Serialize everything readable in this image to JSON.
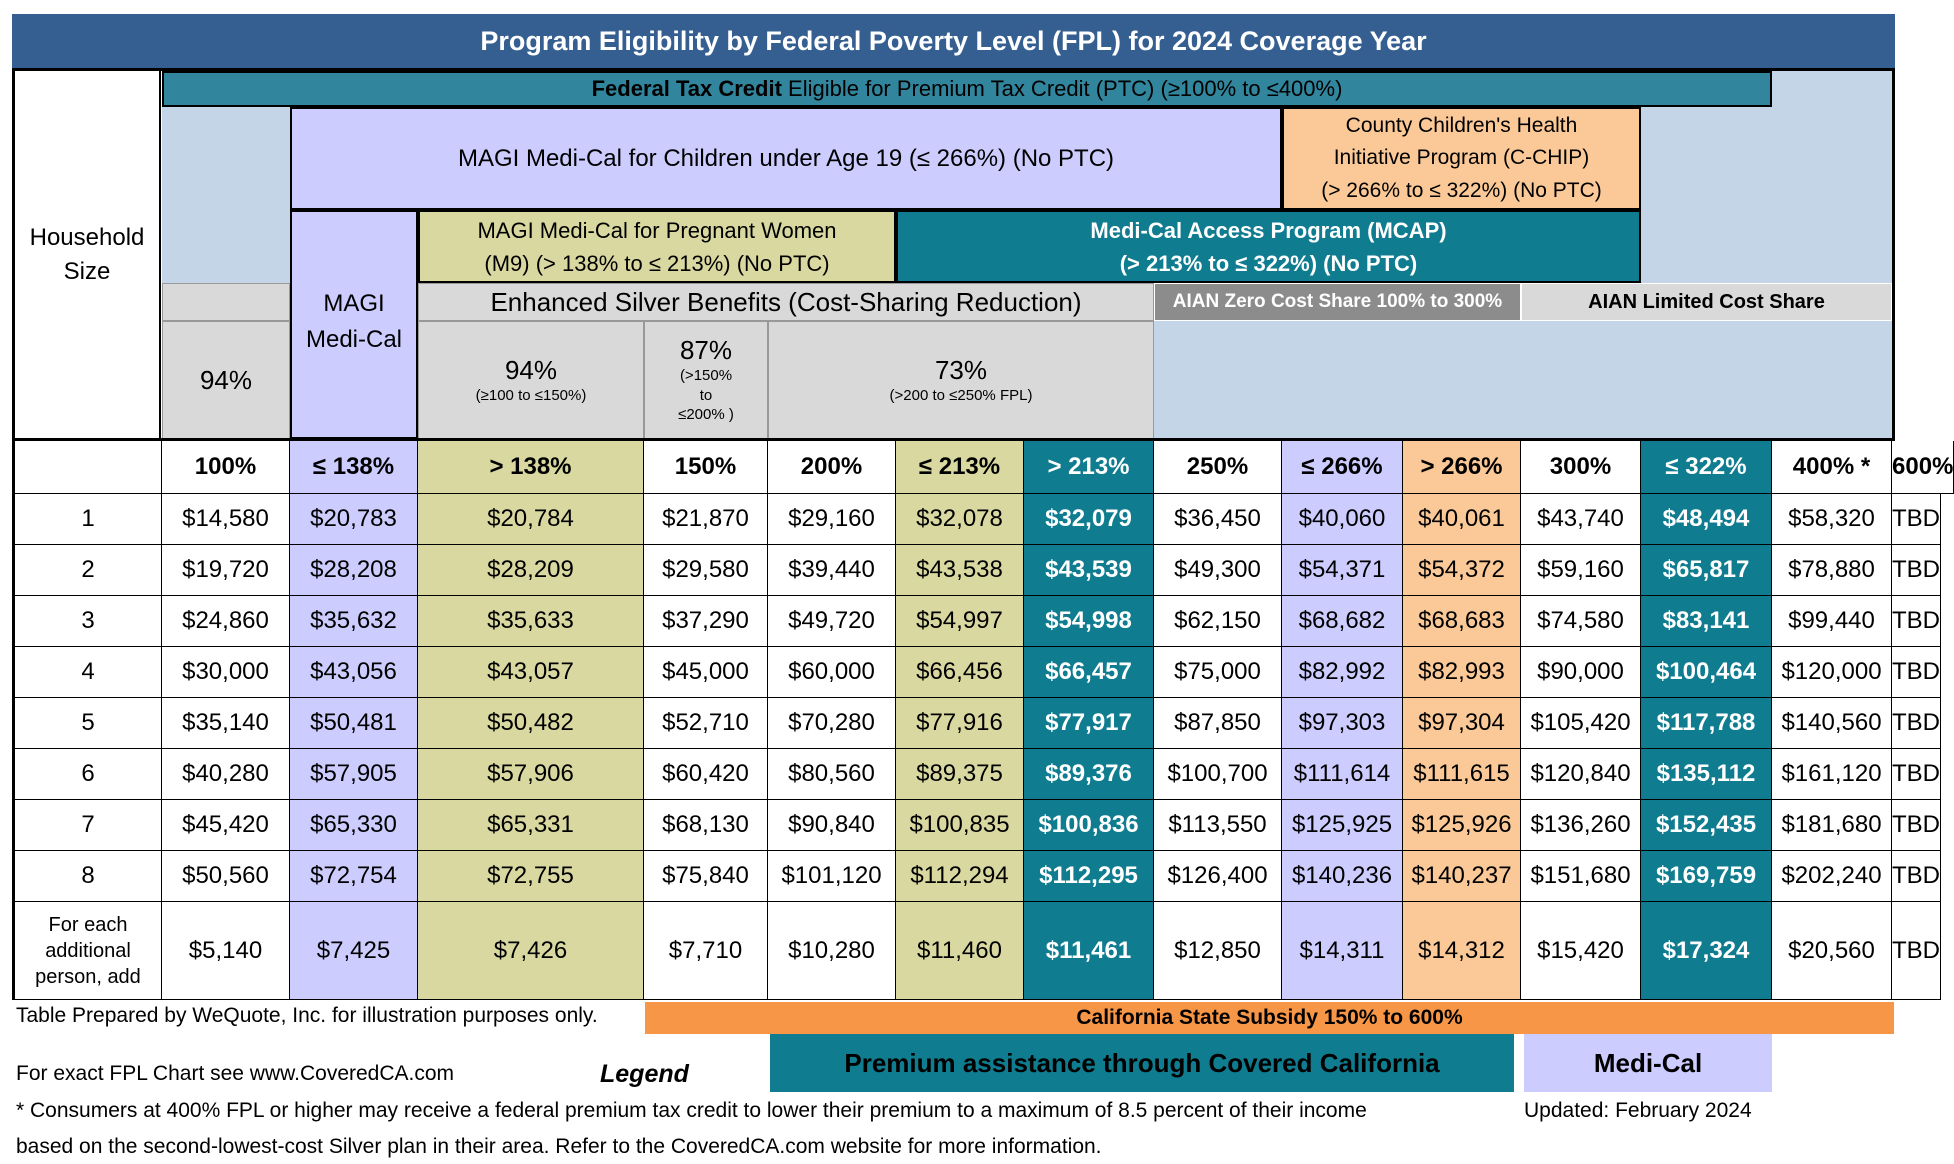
{
  "title": "Program Eligibility by Federal Poverty Level (FPL) for  2024 Coverage Year",
  "household_size_label": "Household Size",
  "ptc_bar": {
    "bold": "Federal Tax Credit",
    "text": " Eligible for Premium Tax Credit (PTC) (≥100% to ≤400%)"
  },
  "magi_children": "MAGI Medi-Cal for Children under Age 19 (≤ 266%) (No PTC)",
  "cchip": [
    "County Children's Health",
    "Initiative Program (C-CHIP)",
    "(> 266% to ≤ 322%) (No PTC)"
  ],
  "magi_pregnant": [
    "MAGI Medi-Cal for Pregnant Women",
    "(M9) (> 138% to ≤ 213%) (No PTC)"
  ],
  "mcap": [
    "Medi-Cal Access Program (MCAP)",
    "(> 213% to ≤ 322%) (No PTC)"
  ],
  "magi_medical": [
    "MAGI",
    "Medi-Cal"
  ],
  "enhanced_silver": "Enhanced Silver Benefits (Cost-Sharing Reduction)",
  "aian_zero": "AIAN Zero Cost Share 100% to 300%",
  "aian_limited": "AIAN Limited Cost Share",
  "csr": {
    "first": "94%",
    "b94": {
      "pct": "94%",
      "range": "(≥100 to ≤150%)"
    },
    "b87": {
      "pct": "87%",
      "range1": "(>150%",
      "range2": "to",
      "range3": "≤200% )"
    },
    "b73": {
      "pct": "73%",
      "range": "(>200 to ≤250% FPL)"
    }
  },
  "columns": [
    "100%",
    "≤ 138%",
    "> 138%",
    "150%",
    "200%",
    "≤ 213%",
    "> 213%",
    "250%",
    "≤ 266%",
    "> 266%",
    "300%",
    "≤ 322%",
    "400% *",
    "600%"
  ],
  "rows": [
    {
      "size": "1",
      "values": [
        "$14,580",
        "$20,783",
        "$20,784",
        "$21,870",
        "$29,160",
        "$32,078",
        "$32,079",
        "$36,450",
        "$40,060",
        "$40,061",
        "$43,740",
        "$48,494",
        "$58,320",
        "TBD"
      ]
    },
    {
      "size": "2",
      "values": [
        "$19,720",
        "$28,208",
        "$28,209",
        "$29,580",
        "$39,440",
        "$43,538",
        "$43,539",
        "$49,300",
        "$54,371",
        "$54,372",
        "$59,160",
        "$65,817",
        "$78,880",
        "TBD"
      ]
    },
    {
      "size": "3",
      "values": [
        "$24,860",
        "$35,632",
        "$35,633",
        "$37,290",
        "$49,720",
        "$54,997",
        "$54,998",
        "$62,150",
        "$68,682",
        "$68,683",
        "$74,580",
        "$83,141",
        "$99,440",
        "TBD"
      ]
    },
    {
      "size": "4",
      "values": [
        "$30,000",
        "$43,056",
        "$43,057",
        "$45,000",
        "$60,000",
        "$66,456",
        "$66,457",
        "$75,000",
        "$82,992",
        "$82,993",
        "$90,000",
        "$100,464",
        "$120,000",
        "TBD"
      ]
    },
    {
      "size": "5",
      "values": [
        "$35,140",
        "$50,481",
        "$50,482",
        "$52,710",
        "$70,280",
        "$77,916",
        "$77,917",
        "$87,850",
        "$97,303",
        "$97,304",
        "$105,420",
        "$117,788",
        "$140,560",
        "TBD"
      ]
    },
    {
      "size": "6",
      "values": [
        "$40,280",
        "$57,905",
        "$57,906",
        "$60,420",
        "$80,560",
        "$89,375",
        "$89,376",
        "$100,700",
        "$111,614",
        "$111,615",
        "$120,840",
        "$135,112",
        "$161,120",
        "TBD"
      ]
    },
    {
      "size": "7",
      "values": [
        "$45,420",
        "$65,330",
        "$65,331",
        "$68,130",
        "$90,840",
        "$100,835",
        "$100,836",
        "$113,550",
        "$125,925",
        "$125,926",
        "$136,260",
        "$152,435",
        "$181,680",
        "TBD"
      ]
    },
    {
      "size": "8",
      "values": [
        "$50,560",
        "$72,754",
        "$72,755",
        "$75,840",
        "$101,120",
        "$112,294",
        "$112,295",
        "$126,400",
        "$140,236",
        "$140,237",
        "$151,680",
        "$169,759",
        "$202,240",
        "TBD"
      ]
    }
  ],
  "additional_row": {
    "label": [
      "For each",
      "additional",
      "person, add"
    ],
    "values": [
      "$5,140",
      "$7,425",
      "$7,426",
      "$7,710",
      "$10,280",
      "$11,460",
      "$11,461",
      "$12,850",
      "$14,311",
      "$14,312",
      "$15,420",
      "$17,324",
      "$20,560",
      "TBD"
    ]
  },
  "column_colors": [
    "#ffffff",
    "#ccccff",
    "#d8d8a0",
    "#ffffff",
    "#ffffff",
    "#d8d8a0",
    "#0f7c8f",
    "#ffffff",
    "#ccccff",
    "#fbc997",
    "#ffffff",
    "#0f7c8f",
    "#ffffff",
    "#ffffff"
  ],
  "footer": {
    "prepared": "Table Prepared by WeQuote, Inc. for illustration purposes only.",
    "state_subsidy": "California State Subsidy 150% to 600%",
    "fpl_chart": "For exact FPL Chart see www.CoveredCA.com",
    "legend": "Legend",
    "legend_teal": "Premium assistance through Covered California",
    "legend_lav": "Medi-Cal",
    "note1": "* Consumers at 400% FPL or higher may receive a federal premium tax credit to lower their premium to a maximum of 8.5 percent of their income",
    "updated": "Updated: February 2024",
    "note2": "based on the second-lowest-cost Silver plan in their area. Refer to the CoveredCA.com website for more information."
  }
}
